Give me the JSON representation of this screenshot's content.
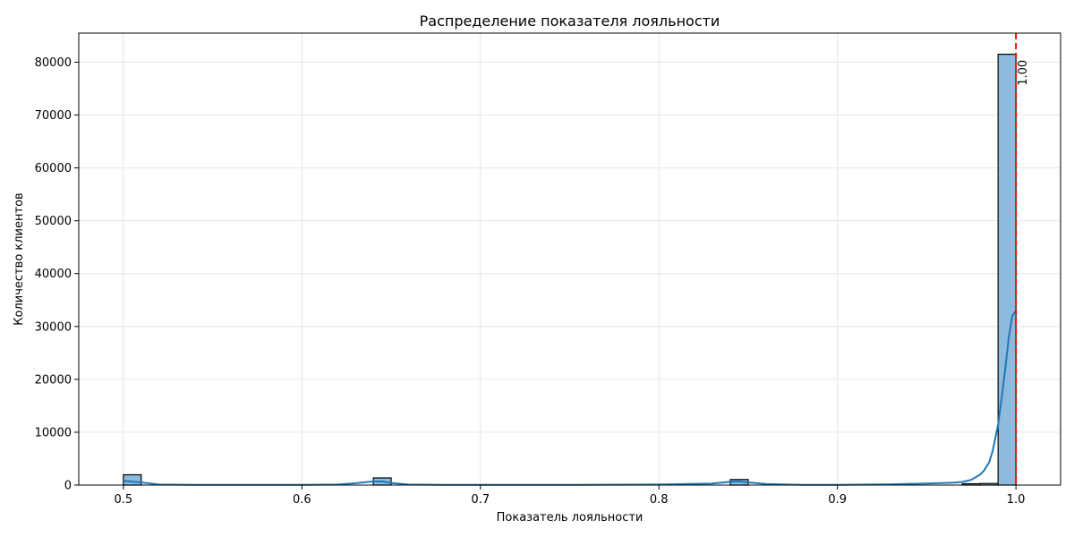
{
  "chart_data": {
    "type": "bar",
    "title": "Распределение показателя лояльности",
    "xlabel": "Показатель лояльности",
    "ylabel": "Количество клиентов",
    "xlim": [
      0.475,
      1.025
    ],
    "ylim": [
      0,
      85500
    ],
    "grid": true,
    "xticks": [
      0.5,
      0.6,
      0.7,
      0.8,
      0.9,
      1.0
    ],
    "xtick_labels": [
      "0.5",
      "0.6",
      "0.7",
      "0.8",
      "0.9",
      "1.0"
    ],
    "yticks": [
      0,
      10000,
      20000,
      30000,
      40000,
      50000,
      60000,
      70000,
      80000
    ],
    "ytick_labels": [
      "0",
      "10000",
      "20000",
      "30000",
      "40000",
      "50000",
      "60000",
      "70000",
      "80000"
    ],
    "bin_width": 0.01,
    "bins": [
      {
        "x0": 0.5,
        "x1": 0.51,
        "count": 1950
      },
      {
        "x0": 0.64,
        "x1": 0.65,
        "count": 1350
      },
      {
        "x0": 0.84,
        "x1": 0.85,
        "count": 1050
      },
      {
        "x0": 0.97,
        "x1": 0.98,
        "count": 250
      },
      {
        "x0": 0.98,
        "x1": 0.99,
        "count": 300
      },
      {
        "x0": 0.99,
        "x1": 1.0,
        "count": 81500
      }
    ],
    "kde": {
      "x": [
        0.5,
        0.51,
        0.52,
        0.54,
        0.56,
        0.58,
        0.6,
        0.62,
        0.63,
        0.64,
        0.645,
        0.65,
        0.66,
        0.68,
        0.7,
        0.75,
        0.8,
        0.83,
        0.84,
        0.845,
        0.85,
        0.86,
        0.88,
        0.9,
        0.93,
        0.95,
        0.96,
        0.965,
        0.97,
        0.975,
        0.98,
        0.982,
        0.985,
        0.987,
        0.99,
        0.992,
        0.994,
        0.996,
        0.998,
        1.0
      ],
      "y": [
        800,
        500,
        100,
        50,
        50,
        50,
        50,
        100,
        350,
        700,
        700,
        400,
        100,
        50,
        50,
        50,
        100,
        300,
        650,
        700,
        500,
        200,
        50,
        50,
        150,
        300,
        400,
        450,
        600,
        1000,
        2000,
        2700,
        4300,
        6500,
        11500,
        16500,
        22000,
        28000,
        32000,
        33000
      ]
    },
    "vline": {
      "x": 1.0,
      "color": "#ff0000",
      "label": "1.00"
    },
    "colors": {
      "bar_fill": "#8ebadd",
      "bar_edge": "#000000",
      "kde": "#1f77b4",
      "grid": "#e6e6e6"
    }
  }
}
